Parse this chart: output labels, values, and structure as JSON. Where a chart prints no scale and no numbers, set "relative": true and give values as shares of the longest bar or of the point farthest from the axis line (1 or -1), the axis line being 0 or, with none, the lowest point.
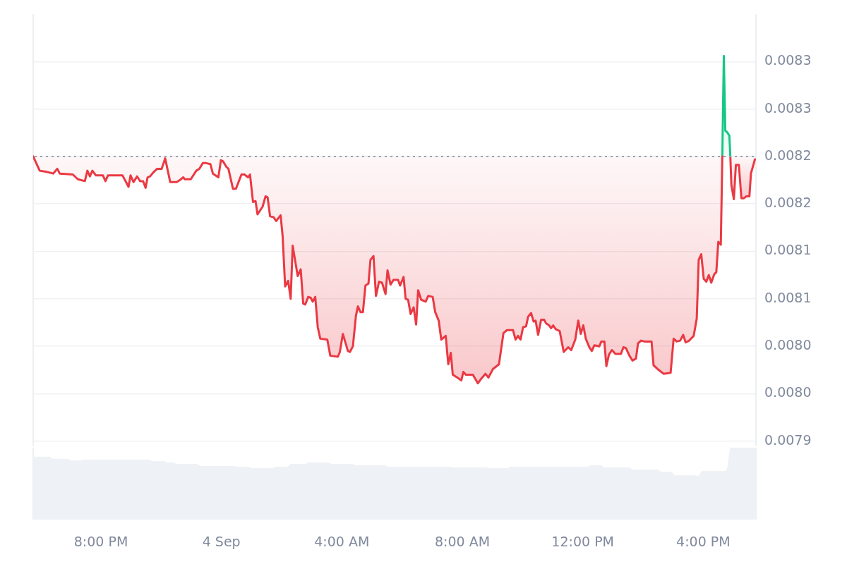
{
  "chart_data": [
    {
      "type": "area",
      "series": [
        {
          "color": "#ea3943",
          "x": [
            "--09-03T17:45",
            "--09-03T17:58",
            "--09-03T18:10",
            "--09-03T18:25",
            "--09-03T18:33",
            "--09-03T18:38",
            "--09-03T19:04",
            "--09-03T19:14",
            "--09-03T19:28",
            "--09-03T19:33",
            "--09-03T19:38",
            "--09-03T19:43",
            "--09-03T19:50",
            "--09-03T20:04",
            "--09-03T20:09",
            "--09-03T20:14",
            "--09-03T20:43",
            "--09-03T20:55",
            "--09-03T20:59",
            "--09-03T21:05",
            "--09-03T21:12",
            "--09-03T21:18",
            "--09-03T21:24",
            "--09-03T21:29",
            "--09-03T21:33",
            "--09-03T21:38",
            "--09-03T21:44",
            "--09-03T21:52",
            "--09-03T22:01",
            "--09-03T22:08",
            "--09-03T22:18",
            "--09-03T22:31",
            "--09-03T22:37",
            "--09-03T22:44",
            "--09-03T22:47",
            "--09-03T22:59",
            "--09-03T23:10",
            "--09-03T23:16",
            "--09-03T23:23",
            "--09-03T23:29",
            "--09-03T23:38",
            "--09-03T23:43",
            "--09-03T23:54",
            "--09-03T23:59",
            "--09-04T00:03",
            "--09-04T00:10",
            "--09-04T00:14",
            "--09-04T00:23",
            "--09-04T00:29",
            "--09-04T00:40",
            "--09-04T00:46",
            "--09-04T00:53",
            "--09-04T00:57",
            "--09-04T01:03",
            "--09-04T01:08",
            "--09-04T01:12",
            "--09-04T01:22",
            "--09-04T01:28",
            "--09-04T01:32",
            "--09-04T01:37",
            "--09-04T01:44",
            "--09-04T01:49",
            "--09-04T01:58",
            "--09-04T02:02",
            "--09-04T02:07",
            "--09-04T02:13",
            "--09-04T02:18",
            "--09-04T02:22",
            "--09-04T02:32",
            "--09-04T02:38",
            "--09-04T02:43",
            "--09-04T02:47",
            "--09-04T02:53",
            "--09-04T02:58",
            "--09-04T03:02",
            "--09-04T03:07",
            "--09-04T03:12",
            "--09-04T03:17",
            "--09-04T03:31",
            "--09-04T03:37",
            "--09-04T03:52",
            "--09-04T03:56",
            "--09-04T04:02",
            "--09-04T04:12",
            "--09-04T04:16",
            "--09-04T04:22",
            "--09-04T04:28",
            "--09-04T04:32",
            "--09-04T04:37",
            "--09-04T04:42",
            "--09-04T04:47",
            "--09-04T04:53",
            "--09-04T04:57",
            "--09-04T05:03",
            "--09-04T05:08",
            "--09-04T05:14",
            "--09-04T05:20",
            "--09-04T05:27",
            "--09-04T05:31",
            "--09-04T05:37",
            "--09-04T05:43",
            "--09-04T05:52",
            "--09-04T05:56",
            "--09-04T06:03",
            "--09-04T06:07",
            "--09-04T06:12",
            "--09-04T06:17",
            "--09-04T06:23",
            "--09-04T06:28",
            "--09-04T06:32",
            "--09-04T06:38",
            "--09-04T06:47",
            "--09-04T06:52",
            "--09-04T07:01",
            "--09-04T07:06",
            "--09-04T07:13",
            "--09-04T07:18",
            "--09-04T07:27",
            "--09-04T07:32",
            "--09-04T07:37",
            "--09-04T07:41",
            "--09-04T07:50",
            "--09-04T07:58",
            "--09-04T08:02",
            "--09-04T08:07",
            "--09-04T08:21",
            "--09-04T08:31",
            "--09-04T08:38",
            "--09-04T08:46",
            "--09-04T08:52",
            "--09-04T09:01",
            "--09-04T09:13",
            "--09-04T09:22",
            "--09-04T09:29",
            "--09-04T09:41",
            "--09-04T09:46",
            "--09-04T09:51",
            "--09-04T09:56",
            "--09-04T10:01",
            "--09-04T10:07",
            "--09-04T10:11",
            "--09-04T10:17",
            "--09-04T10:22",
            "--09-04T10:26",
            "--09-04T10:31",
            "--09-04T10:37",
            "--09-04T10:43",
            "--09-04T10:47",
            "--09-04T10:53",
            "--09-04T10:57",
            "--09-04T11:01",
            "--09-04T11:06",
            "--09-04T11:14",
            "--09-04T11:22",
            "--09-04T11:31",
            "--09-04T11:37",
            "--09-04T11:45",
            "--09-04T11:51",
            "--09-04T11:56",
            "--09-04T12:01",
            "--09-04T12:06",
            "--09-04T12:13",
            "--09-04T12:18",
            "--09-04T12:23",
            "--09-04T12:33",
            "--09-04T12:37",
            "--09-04T12:43",
            "--09-04T12:47",
            "--09-04T12:52",
            "--09-04T12:58",
            "--09-04T13:05",
            "--09-04T13:16",
            "--09-04T13:21",
            "--09-04T13:26",
            "--09-04T13:33",
            "--09-04T13:39",
            "--09-04T13:46",
            "--09-04T13:50",
            "--09-04T13:56",
            "--09-04T14:03",
            "--09-04T14:17",
            "--09-04T14:21",
            "--09-04T14:29",
            "--09-04T14:41",
            "--09-04T14:55",
            "--09-04T15:01",
            "--09-04T15:07",
            "--09-04T15:14",
            "--09-04T15:20",
            "--09-04T15:25",
            "--09-04T15:32",
            "--09-04T15:41",
            "--09-04T15:47",
            "--09-04T15:51",
            "--09-04T15:56",
            "--09-04T16:01",
            "--09-04T16:06",
            "--09-04T16:11",
            "--09-04T16:16",
            "--09-04T16:22",
            "--09-04T16:26",
            "--09-04T16:30",
            "--09-04T16:35",
            "--09-04T16:38"
          ],
          "values": [
            0.0082,
            0.008185,
            0.008184,
            0.008182,
            0.008187,
            0.008182,
            0.008181,
            0.008176,
            0.008174,
            0.008185,
            0.008179,
            0.008185,
            0.00818,
            0.00818,
            0.008174,
            0.00818,
            0.00818,
            0.008168,
            0.00818,
            0.008173,
            0.008179,
            0.008174,
            0.008174,
            0.008167,
            0.008178,
            0.008179,
            0.008183,
            0.008187,
            0.008187,
            0.008198,
            0.008173,
            0.008173,
            0.008175,
            0.008178,
            0.008176,
            0.008176,
            0.008185,
            0.008187,
            0.008193,
            0.008193,
            0.008192,
            0.008182,
            0.008178,
            0.008196,
            0.008195,
            0.008189,
            0.008187,
            0.008166,
            0.008166,
            0.008181,
            0.008181,
            0.008178,
            0.008181,
            0.008152,
            0.008153,
            0.008139,
            0.008147,
            0.008158,
            0.008157,
            0.008137,
            0.008136,
            0.008132,
            0.008138,
            0.008116,
            0.008063,
            0.008069,
            0.00805,
            0.008106,
            0.008074,
            0.008081,
            0.008045,
            0.008044,
            0.008052,
            0.008051,
            0.008047,
            0.008052,
            0.00802,
            0.008008,
            0.008007,
            0.00799,
            0.007989,
            0.007994,
            0.008013,
            0.007995,
            0.007994,
            0.008,
            0.008032,
            0.008042,
            0.008036,
            0.008036,
            0.008064,
            0.008066,
            0.008091,
            0.008095,
            0.008053,
            0.008068,
            0.008067,
            0.008055,
            0.00808,
            0.008065,
            0.00807,
            0.00807,
            0.008064,
            0.008073,
            0.00805,
            0.008049,
            0.008034,
            0.008041,
            0.008023,
            0.008059,
            0.008049,
            0.008047,
            0.008053,
            0.008052,
            0.008036,
            0.008027,
            0.008007,
            0.008011,
            0.007981,
            0.007993,
            0.00797,
            0.007967,
            0.007964,
            0.007973,
            0.00797,
            0.00797,
            0.007961,
            0.007966,
            0.007971,
            0.007967,
            0.007976,
            0.007981,
            0.008014,
            0.008017,
            0.008017,
            0.008007,
            0.008011,
            0.008007,
            0.00802,
            0.008021,
            0.008031,
            0.008035,
            0.008026,
            0.008027,
            0.008012,
            0.008028,
            0.008028,
            0.008024,
            0.008022,
            0.008019,
            0.008022,
            0.008018,
            0.008016,
            0.007994,
            0.007999,
            0.007996,
            0.008007,
            0.008027,
            0.008013,
            0.008022,
            0.008008,
            0.007999,
            0.007995,
            0.008001,
            0.008,
            0.008005,
            0.008005,
            0.007979,
            0.007991,
            0.007996,
            0.007992,
            0.007992,
            0.007999,
            0.007998,
            0.00799,
            0.007985,
            0.007987,
            0.008003,
            0.008006,
            0.008005,
            0.008005,
            0.00798,
            0.007976,
            0.007971,
            0.007972,
            0.008008,
            0.008005,
            0.008006,
            0.008012,
            0.008004,
            0.008006,
            0.008011,
            0.008029,
            0.008091,
            0.008097,
            0.008071,
            0.008068,
            0.008075,
            0.008067,
            0.008076,
            0.008078,
            0.00811,
            0.008107,
            0.0082
          ]
        },
        {
          "color": "#16c784",
          "x": [
            "--09-04T16:38",
            "--09-04T16:41",
            "--09-04T16:44",
            "--09-04T16:47",
            "--09-04T16:52",
            "--09-04T16:54"
          ],
          "values": [
            0.0082,
            0.008306,
            0.008227,
            0.008226,
            0.008222,
            0.0082
          ]
        },
        {
          "color": "#ea3943",
          "x": [
            "--09-04T16:54",
            "--09-04T16:56",
            "--09-04T17:01",
            "--09-04T17:05",
            "--09-04T17:11",
            "--09-04T17:16",
            "--09-04T17:21",
            "--09-04T17:26",
            "--09-04T17:32",
            "--09-04T17:35",
            "--09-04T17:43"
          ],
          "values": [
            0.0082,
            0.00817,
            0.008155,
            0.008191,
            0.008191,
            0.008156,
            0.008156,
            0.008158,
            0.008158,
            0.008182,
            0.008197
          ]
        }
      ],
      "xlim": [
        "--09-03T17:45",
        "--09-04T17:45"
      ],
      "ylim": [
        0.007895,
        0.00835
      ],
      "yticks": [
        0.0079,
        {
          "value": 0.00795,
          "label": "0.0080"
        },
        {
          "value": 0.008,
          "label": "0.0080"
        },
        {
          "value": 0.00805,
          "label": "0.0081"
        },
        0.0081,
        {
          "value": 0.00815,
          "label": "0.0082"
        },
        0.0082,
        {
          "value": 0.00825,
          "label": "0.0083"
        },
        0.0083
      ],
      "grid": "y",
      "tick_labels": "y",
      "ref_lines": [
        {
          "axis": "y",
          "value": 0.0082,
          "color": "#98a0b0",
          "line_style": "dotted"
        }
      ]
    },
    {
      "type": "area",
      "relative": true,
      "x": [
        "--09-03T17:45",
        "--09-03T18:18",
        "--09-03T18:24",
        "--09-03T18:54",
        "--09-03T19:00",
        "--09-03T19:21",
        "--09-03T19:27",
        "--09-03T21:36",
        "--09-03T21:42",
        "--09-03T22:06",
        "--09-03T22:12",
        "--09-03T22:24",
        "--09-03T22:30",
        "--09-03T23:12",
        "--09-03T23:18",
        "--09-04T00:24",
        "--09-04T00:30",
        "--09-04T00:54",
        "--09-04T01:00",
        "--09-04T01:42",
        "--09-04T01:48",
        "--09-04T02:12",
        "--09-04T02:18",
        "--09-04T02:48",
        "--09-04T02:54",
        "--09-04T03:33",
        "--09-04T03:39",
        "--09-04T04:21",
        "--09-04T04:27",
        "--09-04T05:27",
        "--09-04T05:33",
        "--09-04T07:36",
        "--09-04T07:42",
        "--09-04T08:48",
        "--09-04T08:54",
        "--09-04T09:30",
        "--09-04T09:36",
        "--09-04T12:09",
        "--09-04T12:15",
        "--09-04T12:36",
        "--09-04T12:42",
        "--09-04T13:33",
        "--09-04T13:39",
        "--09-04T14:30",
        "--09-04T14:36",
        "--09-04T14:57",
        "--09-04T15:03",
        "--09-04T15:45",
        "--09-04T15:51",
        "--09-04T15:57",
        "--09-04T16:42",
        "--09-04T16:48",
        "--09-04T16:54",
        "--09-04T17:45"
      ],
      "values": [
        0.87,
        0.87,
        0.84,
        0.84,
        0.82,
        0.82,
        0.83,
        0.83,
        0.81,
        0.81,
        0.79,
        0.79,
        0.77,
        0.77,
        0.74,
        0.74,
        0.73,
        0.73,
        0.71,
        0.71,
        0.73,
        0.73,
        0.77,
        0.77,
        0.79,
        0.79,
        0.77,
        0.77,
        0.75,
        0.75,
        0.73,
        0.73,
        0.72,
        0.72,
        0.71,
        0.71,
        0.73,
        0.73,
        0.75,
        0.75,
        0.72,
        0.72,
        0.69,
        0.69,
        0.66,
        0.66,
        0.61,
        0.61,
        0.6,
        0.67,
        0.67,
        0.69,
        1,
        1
      ],
      "color": "#eef1f5",
      "xlim": [
        "--09-03T17:45",
        "--09-04T17:45"
      ],
      "xticks": [
        {
          "value": "--09-03T20:00",
          "label": "8:00 PM"
        },
        {
          "value": "--09-04",
          "label": "4 Sep"
        },
        {
          "value": "--09-04T04:00",
          "label": "4:00 AM"
        },
        {
          "value": "--09-04T08:00",
          "label": "8:00 AM"
        },
        {
          "value": "--09-04T12:00",
          "label": "12:00 PM"
        },
        {
          "value": "--09-04T16:00",
          "label": "4:00 PM"
        }
      ]
    }
  ]
}
